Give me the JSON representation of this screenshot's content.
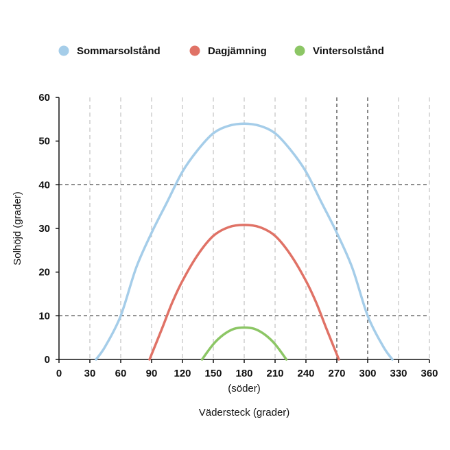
{
  "chart_data": {
    "type": "line",
    "xlabel": "Vädersteck (grader)",
    "xlabel_sub": "(söder)",
    "ylabel": "Solhöjd (grader)",
    "xlim": [
      0,
      360
    ],
    "ylim": [
      0,
      60
    ],
    "x_ticks": [
      "0",
      "30",
      "60",
      "90",
      "120",
      "150",
      "180",
      "210",
      "240",
      "270",
      "300",
      "330",
      "360"
    ],
    "y_ticks": [
      "0",
      "10",
      "20",
      "30",
      "40",
      "50",
      "60"
    ],
    "legend_position": "top",
    "grid": "dashed vertical lines every 30°",
    "highlight_lines": {
      "x": [
        270,
        300
      ],
      "y": [
        10,
        40
      ]
    },
    "series": [
      {
        "name": "Sommarsolstånd",
        "color": "#a5cde9",
        "points": [
          [
            36,
            0
          ],
          [
            45,
            3
          ],
          [
            60,
            10
          ],
          [
            75,
            21
          ],
          [
            90,
            29
          ],
          [
            105,
            36
          ],
          [
            120,
            43
          ],
          [
            135,
            48
          ],
          [
            150,
            51.8
          ],
          [
            165,
            53.5
          ],
          [
            180,
            54
          ],
          [
            195,
            53.5
          ],
          [
            210,
            51.8
          ],
          [
            225,
            48
          ],
          [
            240,
            43
          ],
          [
            255,
            36
          ],
          [
            270,
            29
          ],
          [
            285,
            21
          ],
          [
            300,
            10
          ],
          [
            315,
            3
          ],
          [
            324,
            0
          ]
        ]
      },
      {
        "name": "Dagjämning",
        "color": "#e07266",
        "points": [
          [
            88,
            0
          ],
          [
            100,
            7
          ],
          [
            110,
            13
          ],
          [
            120,
            18
          ],
          [
            135,
            24
          ],
          [
            150,
            28.3
          ],
          [
            165,
            30.3
          ],
          [
            180,
            30.8
          ],
          [
            195,
            30.3
          ],
          [
            210,
            28.3
          ],
          [
            225,
            24
          ],
          [
            240,
            18
          ],
          [
            250,
            13
          ],
          [
            260,
            7
          ],
          [
            272,
            0
          ]
        ]
      },
      {
        "name": "Vintersolstånd",
        "color": "#8cc665",
        "points": [
          [
            139,
            0
          ],
          [
            150,
            3.5
          ],
          [
            160,
            5.7
          ],
          [
            170,
            7
          ],
          [
            180,
            7.3
          ],
          [
            190,
            7
          ],
          [
            200,
            5.7
          ],
          [
            210,
            3.5
          ],
          [
            221,
            0
          ]
        ]
      }
    ]
  }
}
